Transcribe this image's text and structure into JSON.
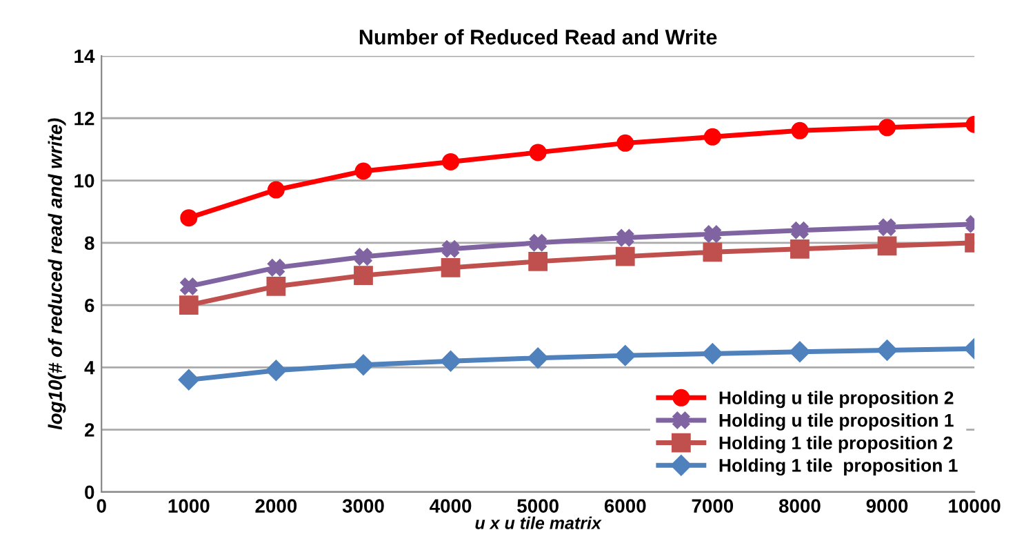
{
  "chart_data": {
    "type": "line",
    "title": "Number of Reduced Read and Write",
    "xlabel": "u x u tile matrix",
    "ylabel": "log10(# of reduced read and write)",
    "x": [
      1000,
      2000,
      3000,
      4000,
      5000,
      6000,
      7000,
      8000,
      9000,
      10000
    ],
    "series": [
      {
        "name": "Holding u tile proposition 2",
        "color": "#ff0000",
        "marker": "circle",
        "values": [
          8.8,
          9.7,
          10.3,
          10.6,
          10.9,
          11.2,
          11.4,
          11.6,
          11.7,
          11.8
        ]
      },
      {
        "name": "Holding u tile proposition 1",
        "color": "#8064a2",
        "marker": "cross",
        "values": [
          6.6,
          7.2,
          7.55,
          7.8,
          8.0,
          8.16,
          8.28,
          8.4,
          8.5,
          8.6
        ]
      },
      {
        "name": "Holding 1 tile proposition 2",
        "color": "#c0504d",
        "marker": "square",
        "values": [
          6.0,
          6.6,
          6.95,
          7.2,
          7.4,
          7.56,
          7.7,
          7.8,
          7.9,
          8.0
        ]
      },
      {
        "name": "Holding 1 tile  proposition 1",
        "color": "#4f81bd",
        "marker": "diamond",
        "values": [
          3.6,
          3.9,
          4.08,
          4.2,
          4.3,
          4.38,
          4.44,
          4.5,
          4.55,
          4.6
        ]
      }
    ],
    "xlim": [
      0,
      10000
    ],
    "xticks": [
      0,
      1000,
      2000,
      3000,
      4000,
      5000,
      6000,
      7000,
      8000,
      9000,
      10000
    ],
    "ylim": [
      0,
      14
    ],
    "yticks": [
      0,
      2,
      4,
      6,
      8,
      10,
      12,
      14
    ],
    "grid": "y",
    "legend": "bottom right"
  }
}
